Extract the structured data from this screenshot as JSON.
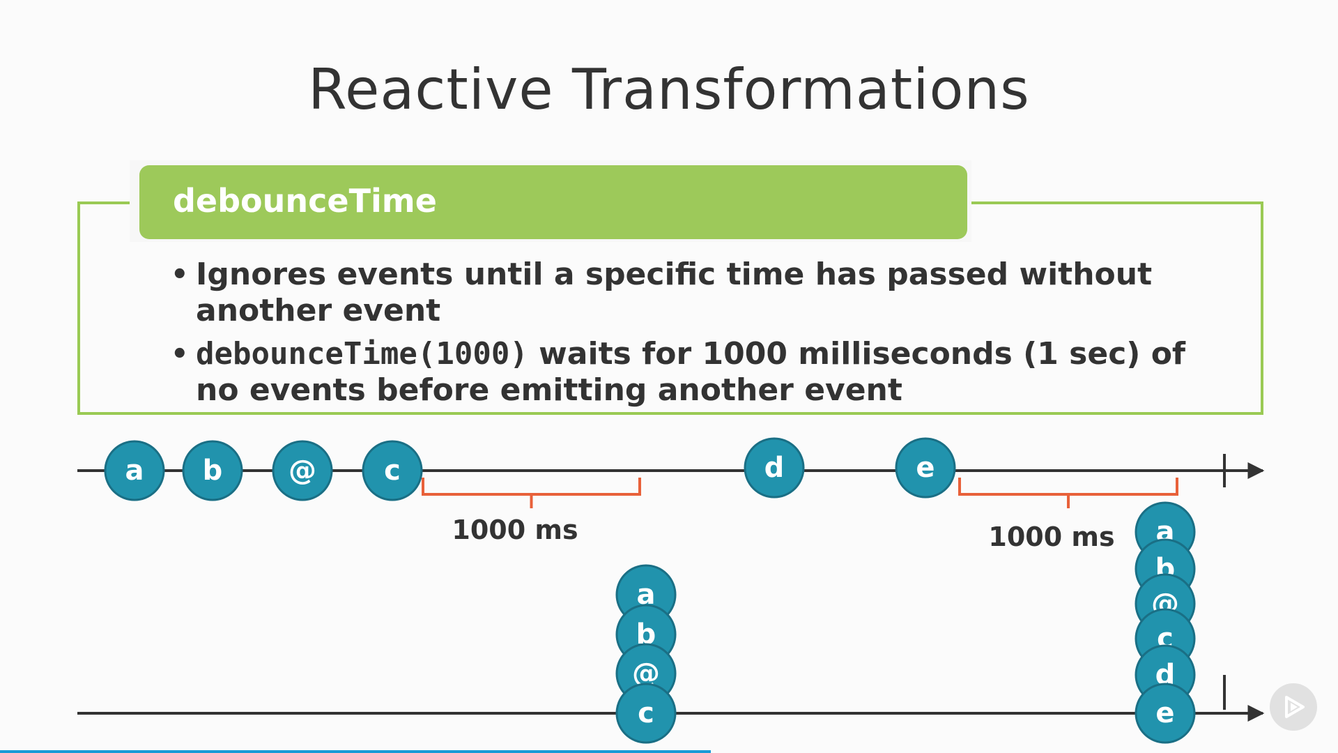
{
  "title": "Reactive Transformations",
  "header": {
    "label": "debounceTime"
  },
  "bullets": [
    {
      "text": "Ignores events until a specific time has passed without another event"
    },
    {
      "code": "debounceTime(1000)",
      "text": " waits for 1000 milliseconds (1 sec) of no events before emitting another event"
    }
  ],
  "bullet_glyph": "•",
  "diagram": {
    "marble_color": "#2193ad",
    "marble_stroke": "#1a6f85",
    "bracket_color": "#e8613a",
    "line_color": "#333333",
    "input_events": [
      "a",
      "b",
      "@",
      "c",
      "d",
      "e"
    ],
    "intervals": [
      "1000 ms",
      "1000 ms"
    ],
    "output_stack_1": [
      "a",
      "b",
      "@",
      "c"
    ],
    "output_stack_2": [
      "a",
      "b",
      "@",
      "c",
      "d",
      "e"
    ]
  },
  "player": {
    "icon": "play-icon"
  }
}
